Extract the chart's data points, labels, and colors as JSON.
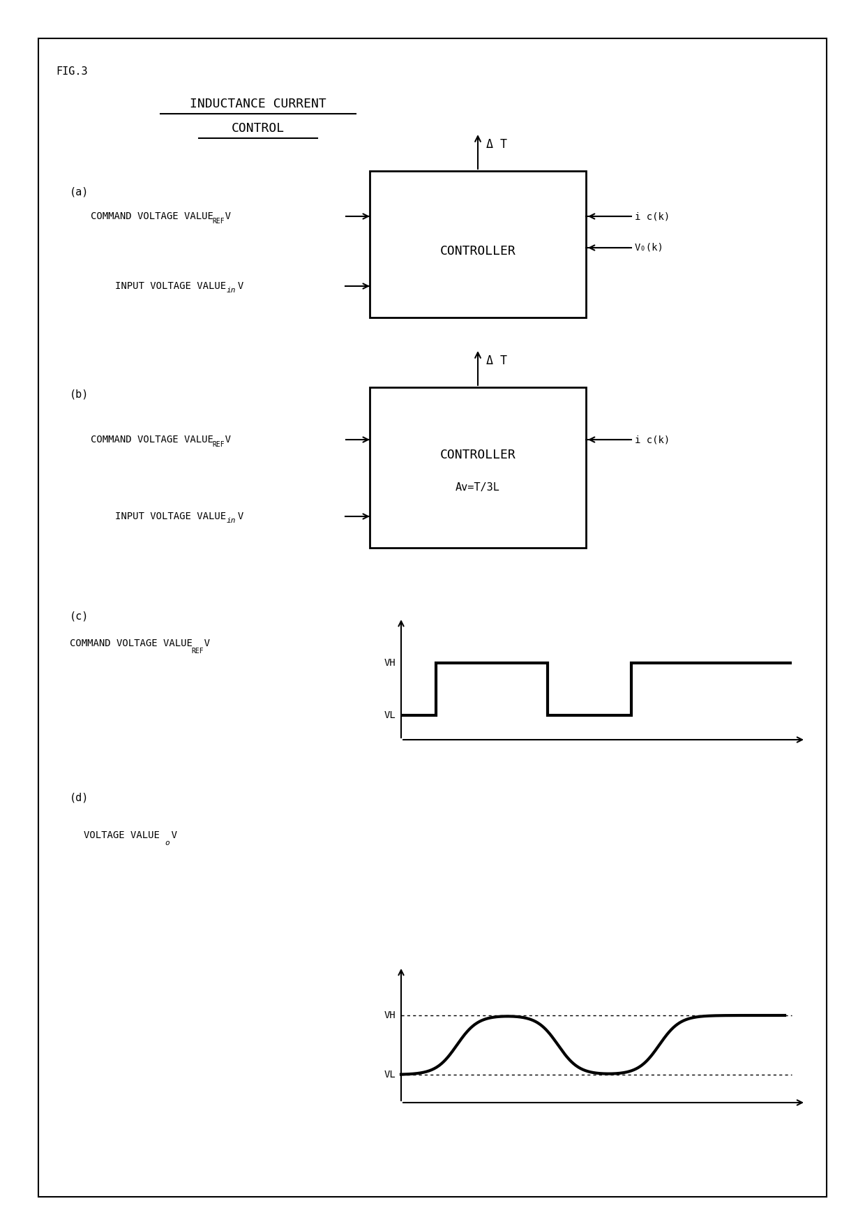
{
  "fig_label": "FIG.3",
  "title_line1": "INDUCTANCE CURRENT",
  "title_line2": "CONTROL",
  "panel_a_label": "(a)",
  "panel_b_label": "(b)",
  "panel_c_label": "(c)",
  "panel_d_label": "(d)",
  "cmd_voltage_label": "COMMAND VOLTAGE VALUE  V",
  "cmd_voltage_sub": "REF",
  "input_voltage_label": "INPUT VOLTAGE VALUE  V",
  "input_voltage_sub": "in",
  "controller_text": "CONTROLLER",
  "av_text": "Av=T/3L",
  "delta_t": "Δ T",
  "ic_k": "i c(k)",
  "vo_k": "V₀(k)",
  "ic_k_b": "i c(k)",
  "voltage_value_label": "VOLTAGE VALUE  V",
  "voltage_value_sub": "o",
  "vh_label": "VH",
  "vl_label": "VL",
  "bg_color": "#ffffff",
  "box_color": "#000000",
  "line_color": "#000000",
  "text_color": "#000000",
  "font_size_main": 11,
  "font_size_label": 10,
  "font_size_sub": 8,
  "font_size_title": 13
}
